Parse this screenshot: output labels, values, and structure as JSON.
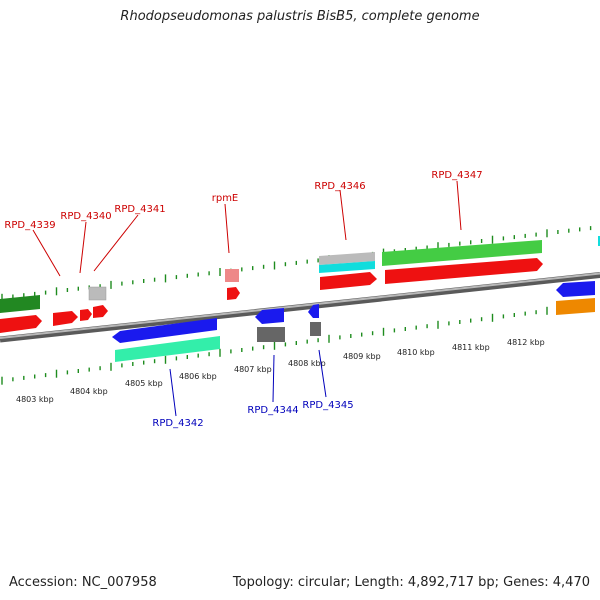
{
  "title": "Rhodopseudomonas palustris BisB5, complete genome",
  "footer": {
    "accession": "Accession: NC_007958",
    "topology": "Topology: circular; Length: 4,892,717 bp; Genes: 4,470"
  },
  "colors": {
    "backbone": "#8c8c8c",
    "tick": "#1e8c1e",
    "label_top": "#cc0000",
    "label_bottom": "#0000bb",
    "red": "#ee1111",
    "pink": "#ee8888",
    "green": "#44cc44",
    "dark_green": "#228822",
    "gray": "#bbbbbb",
    "dark_gray": "#666666",
    "cyan": "#11dddd",
    "blue": "#1a1aee",
    "teal": "#33eeaa",
    "orange": "#ee8800"
  },
  "kbp_labels": [
    "4803 kbp",
    "4804 kbp",
    "4805 kbp",
    "4806 kbp",
    "4807 kbp",
    "4808 kbp",
    "4809 kbp",
    "4810 kbp",
    "4811 kbp",
    "4812 kbp"
  ],
  "gene_labels": {
    "RPD_4339": "RPD_4339",
    "RPD_4340": "RPD_4340",
    "RPD_4341": "RPD_4341",
    "rpmE": "rpmE",
    "RPD_4346": "RPD_4346",
    "RPD_4347": "RPD_4347",
    "RPD_4342": "RPD_4342",
    "RPD_4344": "RPD_4344",
    "RPD_4345": "RPD_4345"
  }
}
